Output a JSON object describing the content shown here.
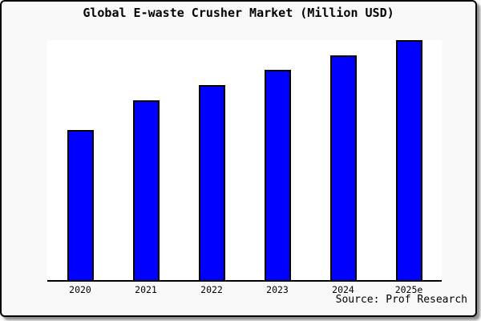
{
  "window": {
    "title": "Global E-waste Crusher Market (Million USD)",
    "source_note": "Source: Prof Research"
  },
  "colors": {
    "bar_fill": "#0000FF",
    "bar_border": "#000000",
    "figure_background": "#F9F9F9",
    "plot_background": "#FFFFFF",
    "axis_line": "#000000",
    "frame_border": "#000000",
    "text": "#000000"
  },
  "chart_data": {
    "type": "bar",
    "title": "Global E-waste Crusher Market (Million USD)",
    "categories": [
      "2020",
      "2021",
      "2022",
      "2023",
      "2024",
      "2025e"
    ],
    "values": [
      100,
      120,
      130,
      140,
      150,
      160
    ],
    "unit": "Million USD",
    "xlabel": "",
    "ylabel": "",
    "ylim": [
      0,
      160
    ],
    "grid": false,
    "legend": false,
    "y_axis_labels_visible": false,
    "source": "Source: Prof Research",
    "bar_color": "#0000FF"
  }
}
